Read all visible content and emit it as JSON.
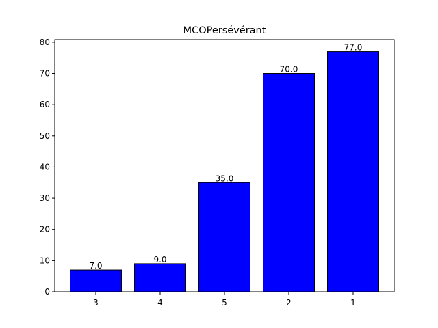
{
  "chart_data": {
    "type": "bar",
    "title": "MCOPersévérant",
    "xlabel": "",
    "ylabel": "",
    "categories": [
      "3",
      "4",
      "5",
      "2",
      "1"
    ],
    "values": [
      7.0,
      9.0,
      35.0,
      70.0,
      77.0
    ],
    "value_labels": [
      "7.0",
      "9.0",
      "35.0",
      "70.0",
      "77.0"
    ],
    "ylim": [
      0,
      80.85
    ],
    "yticks": [
      0,
      10,
      20,
      30,
      40,
      50,
      60,
      70,
      80
    ],
    "ytick_labels": [
      "0",
      "10",
      "20",
      "30",
      "40",
      "50",
      "60",
      "70",
      "80"
    ],
    "bar_color": "#0000ff",
    "edge_color": "#000000",
    "grid": false,
    "legend": "none"
  }
}
